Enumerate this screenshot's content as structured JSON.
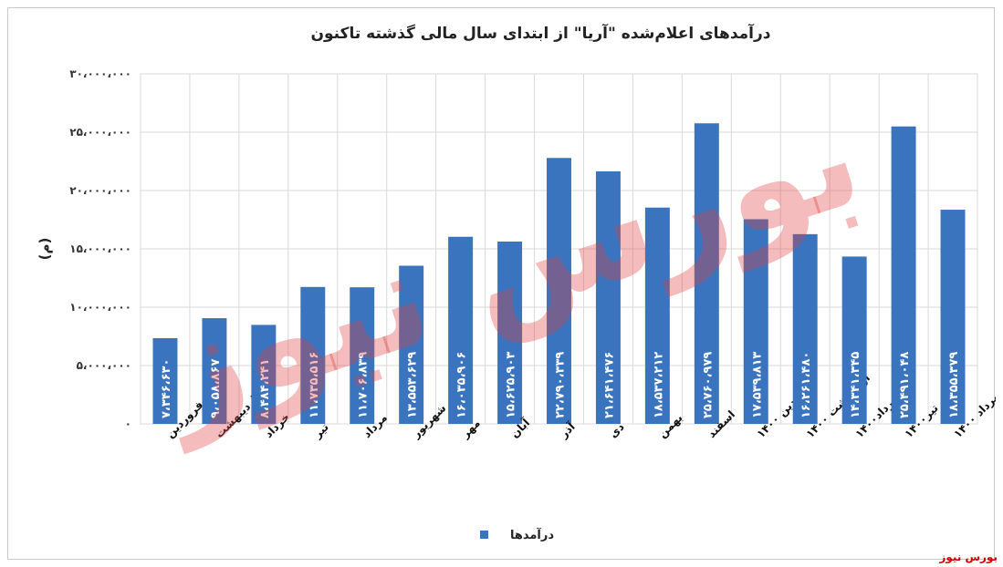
{
  "chart_data": {
    "type": "bar",
    "title": "درآمدهای اعلام‌شده \"آریا\" از ابتدای سال مالی گذشته تاکنون",
    "ylabel": "(م)",
    "xlabel": "",
    "ylim": [
      0,
      30000000
    ],
    "yticks": [
      0,
      5000000,
      10000000,
      15000000,
      20000000,
      25000000,
      30000000
    ],
    "ytick_labels": [
      "۰",
      "۵،۰۰۰،۰۰۰",
      "۱۰،۰۰۰،۰۰۰",
      "۱۵،۰۰۰،۰۰۰",
      "۲۰،۰۰۰،۰۰۰",
      "۲۵،۰۰۰،۰۰۰",
      "۳۰،۰۰۰،۰۰۰"
    ],
    "grid": true,
    "legend_position": "bottom",
    "bar_color": "#3a74bf",
    "categories": [
      "فروردین",
      "اردیبهشت",
      "خرداد",
      "تیر",
      "مرداد",
      "شهریور",
      "مهر",
      "آبان",
      "آذر",
      "دی",
      "بهمن",
      "اسفند",
      "فروردین ۱۴۰۰",
      "اردیبهشت ۱۴۰۰",
      "خرداد۱۴۰۰",
      "تیر۱۴۰۰",
      "مرداد ۱۴۰۰"
    ],
    "series": [
      {
        "name": "درآمدها",
        "values": [
          7346630,
          9058867,
          8484241,
          11735516,
          11706839,
          13553629,
          16035906,
          15625903,
          22790339,
          21641476,
          18537212,
          25760979,
          17539813,
          16261480,
          14341345,
          25491048,
          18355379
        ],
        "labels": [
          "۷،۳۴۶،۶۳۰",
          "۹،۰۵۸،۸۶۷",
          "۸،۴۸۴،۲۴۱",
          "۱۱،۷۳۵،۵۱۶",
          "۱۱،۷۰۶،۸۳۹",
          "۱۳،۵۵۳،۶۲۹",
          "۱۶،۰۳۵،۹۰۶",
          "۱۵،۶۲۵،۹۰۳",
          "۲۲،۷۹۰،۳۳۹",
          "۲۱،۶۴۱،۴۷۶",
          "۱۸،۵۳۷،۲۱۲",
          "۲۵،۷۶۰،۹۷۹",
          "۱۷،۵۳۹،۸۱۳",
          "۱۶،۲۶۱،۴۸۰",
          "۱۴،۳۴۱،۳۴۵",
          "۲۵،۴۹۱،۰۴۸",
          "۱۸،۳۵۵،۳۷۹"
        ]
      }
    ]
  },
  "watermark": {
    "text": "بورس نیوز",
    "color": "#e04040"
  },
  "source": {
    "text": "بورس نیوز",
    "color": "#d00000"
  }
}
